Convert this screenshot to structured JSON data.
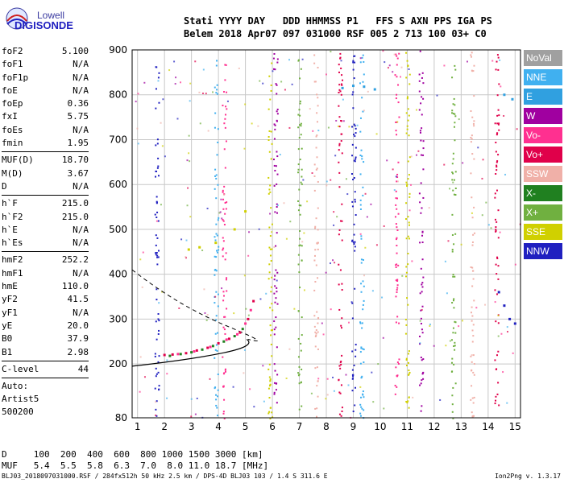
{
  "logo": {
    "line1": "Lowell",
    "line2": "DIGISONDE"
  },
  "header": {
    "line1": "Stati YYYY DAY   DDD HHMMSS P1   FFS S AXN PPS IGA PS",
    "line2": "Belem 2018 Apr07 097 031000 RSF 005 2 713 100 03+ C0"
  },
  "params": {
    "group1": [
      {
        "k": "foF2",
        "v": "5.100"
      },
      {
        "k": "foF1",
        "v": "N/A"
      },
      {
        "k": "foF1p",
        "v": "N/A"
      },
      {
        "k": "foE",
        "v": "N/A"
      },
      {
        "k": "foEp",
        "v": "0.36"
      },
      {
        "k": "fxI",
        "v": "5.75"
      },
      {
        "k": "foEs",
        "v": "N/A"
      },
      {
        "k": "fmin",
        "v": "1.95"
      }
    ],
    "group2": [
      {
        "k": "MUF(D)",
        "v": "18.70"
      },
      {
        "k": "M(D)",
        "v": "3.67"
      },
      {
        "k": "D",
        "v": "N/A"
      }
    ],
    "group3": [
      {
        "k": "h`F",
        "v": "215.0"
      },
      {
        "k": "h`F2",
        "v": "215.0"
      },
      {
        "k": "h`E",
        "v": "N/A"
      },
      {
        "k": "h`Es",
        "v": "N/A"
      }
    ],
    "group4": [
      {
        "k": "hmF2",
        "v": "252.2"
      },
      {
        "k": "hmF1",
        "v": "N/A"
      },
      {
        "k": "hmE",
        "v": "110.0"
      },
      {
        "k": "yF2",
        "v": "41.5"
      },
      {
        "k": "yF1",
        "v": "N/A"
      },
      {
        "k": "yE",
        "v": "20.0"
      },
      {
        "k": "B0",
        "v": "37.9"
      },
      {
        "k": "B1",
        "v": "2.98"
      }
    ],
    "group5": [
      {
        "k": "C-level",
        "v": "44"
      }
    ],
    "auto_label": "Auto:",
    "artist": "Artist5",
    "code": "500200"
  },
  "legend": [
    {
      "label": "NoVal",
      "color": "#a0a0a0"
    },
    {
      "label": "NNE",
      "color": "#40b0f0"
    },
    {
      "label": "E",
      "color": "#30a0e0"
    },
    {
      "label": "W",
      "color": "#a000a0"
    },
    {
      "label": "Vo-",
      "color": "#ff3090"
    },
    {
      "label": "Vo+",
      "color": "#e0004a"
    },
    {
      "label": "SSW",
      "color": "#f0b0a8"
    },
    {
      "label": "X-",
      "color": "#208020"
    },
    {
      "label": "X+",
      "color": "#70b040"
    },
    {
      "label": "SSE",
      "color": "#d0d000"
    },
    {
      "label": "NNW",
      "color": "#2020c0"
    }
  ],
  "muf_table": {
    "d_row": "D     100  200  400  600  800 1000 1500 3000 [km]",
    "muf_row": "MUF   5.4  5.5  5.8  6.3  7.0  8.0 11.0 18.7 [MHz]"
  },
  "footer": {
    "left": "BLJ03_2018097031000.RSF / 284fx512h 50 kHz 2.5 km / DPS-4D BLJ03 103 / 1.4 S 311.6 E",
    "right": "Ion2Png v. 1.3.17"
  },
  "chart_data": {
    "type": "scatter",
    "title": "",
    "xlabel": "",
    "ylabel": "",
    "xlim": [
      0.8,
      15.2
    ],
    "ylim": [
      80,
      900
    ],
    "x_ticks": [
      1,
      2,
      3,
      4,
      5,
      6,
      7,
      8,
      9,
      10,
      11,
      12,
      13,
      14,
      15
    ],
    "y_ticks": [
      80,
      200,
      300,
      400,
      500,
      600,
      700,
      800,
      900
    ],
    "grid": true,
    "series": [
      {
        "name": "X-",
        "color": "#208020",
        "points": [
          [
            2.2,
            218
          ],
          [
            2.6,
            222
          ],
          [
            3.0,
            226
          ],
          [
            3.4,
            232
          ],
          [
            3.8,
            240
          ],
          [
            4.2,
            250
          ],
          [
            4.6,
            262
          ],
          [
            4.9,
            278
          ]
        ]
      },
      {
        "name": "Vo+",
        "color": "#e0004a",
        "points": [
          [
            2.0,
            220
          ],
          [
            2.3,
            221
          ],
          [
            2.8,
            224
          ],
          [
            3.2,
            230
          ],
          [
            3.6,
            236
          ],
          [
            4.0,
            246
          ],
          [
            4.4,
            256
          ],
          [
            4.8,
            270
          ],
          [
            5.1,
            300
          ],
          [
            5.3,
            340
          ]
        ]
      },
      {
        "name": "Vo-",
        "color": "#ff3090",
        "points": [
          [
            2.5,
            222
          ],
          [
            3.1,
            228
          ],
          [
            3.7,
            238
          ],
          [
            4.3,
            254
          ],
          [
            4.7,
            266
          ],
          [
            5.0,
            290
          ],
          [
            5.2,
            320
          ]
        ]
      },
      {
        "name": "SSE",
        "color": "#d0d000",
        "points": [
          [
            2.9,
            455
          ],
          [
            3.3,
            460
          ],
          [
            3.9,
            470
          ],
          [
            4.6,
            500
          ],
          [
            5.0,
            540
          ]
        ]
      },
      {
        "name": "NNW",
        "color": "#2020c0",
        "points": [
          [
            14.4,
            360
          ],
          [
            14.6,
            330
          ],
          [
            14.8,
            300
          ],
          [
            15.0,
            290
          ]
        ]
      },
      {
        "name": "E",
        "color": "#30a0e0",
        "points": [
          [
            8.6,
            815
          ],
          [
            9.0,
            820
          ],
          [
            9.4,
            818
          ],
          [
            9.8,
            812
          ],
          [
            14.6,
            800
          ],
          [
            14.9,
            790
          ]
        ]
      }
    ]
  }
}
